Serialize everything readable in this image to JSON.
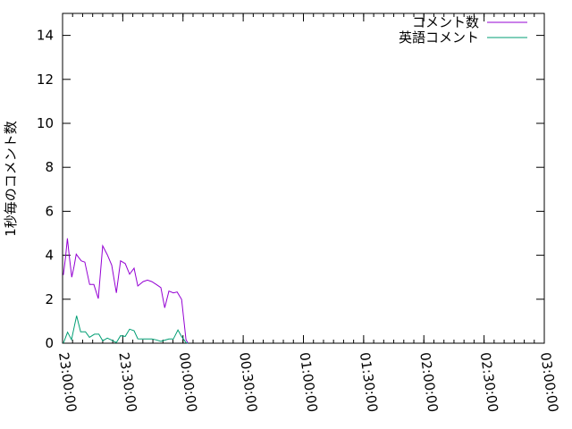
{
  "chart_data": {
    "type": "line",
    "title": "",
    "xlabel": "",
    "ylabel": "1秒毎のコメント数",
    "xlim": [
      "23:00:00",
      "03:00:00"
    ],
    "ylim": [
      0,
      15
    ],
    "xticks": [
      "23:00:00",
      "23:30:00",
      "00:00:00",
      "00:30:00",
      "01:00:00",
      "01:30:00",
      "02:00:00",
      "02:30:00",
      "03:00:00"
    ],
    "yticks": [
      "0",
      "2",
      "4",
      "6",
      "8",
      "10",
      "12",
      "14"
    ],
    "grid": false,
    "legend": "top-right",
    "series": [
      {
        "name": "コメント数",
        "color": "#9400d3",
        "x": [
          "23:00:24",
          "23:01:30",
          "23:02:24",
          "23:03:24",
          "23:04:36",
          "23:05:42",
          "23:06:48",
          "23:08:06",
          "23:09:18",
          "23:11:06",
          "23:13:30",
          "23:15:36",
          "23:17:48",
          "23:20:00",
          "23:22:18",
          "23:24:30",
          "23:26:48",
          "23:28:54",
          "23:31:12",
          "23:33:24",
          "23:35:36",
          "23:37:30",
          "23:40:06",
          "23:42:18",
          "23:44:30",
          "23:46:42",
          "23:49:00",
          "23:50:54",
          "23:53:00",
          "23:55:12",
          "23:57:06",
          "23:59:18",
          "00:01:30",
          "00:02:30"
        ],
        "y": [
          3.1,
          3.93,
          4.77,
          3.93,
          3.0,
          3.48,
          4.05,
          3.89,
          3.75,
          3.69,
          2.67,
          2.67,
          2.03,
          4.43,
          4.02,
          3.55,
          2.29,
          3.75,
          3.62,
          3.14,
          3.41,
          2.6,
          2.8,
          2.87,
          2.8,
          2.67,
          2.53,
          1.61,
          2.37,
          2.29,
          2.33,
          1.99,
          0.16,
          0
        ]
      },
      {
        "name": "英語コメント",
        "color": "#009e73",
        "x": [
          "23:00:24",
          "23:02:30",
          "23:04:27",
          "23:07:00",
          "23:09:00",
          "23:11:24",
          "23:13:24",
          "23:15:54",
          "23:18:06",
          "23:20:00",
          "23:22:18",
          "23:24:30",
          "23:26:48",
          "23:28:54",
          "23:31:12",
          "23:33:24",
          "23:35:36",
          "23:37:30",
          "23:40:06",
          "23:42:18",
          "23:44:30",
          "23:46:42",
          "23:49:00",
          "23:50:54",
          "23:53:00",
          "23:55:12",
          "23:57:30",
          "23:59:18",
          "00:01:30",
          "00:02:24"
        ],
        "y": [
          0,
          0.5,
          0.16,
          1.25,
          0.52,
          0.52,
          0.27,
          0.41,
          0.41,
          0.11,
          0.23,
          0.14,
          0.03,
          0.34,
          0.31,
          0.64,
          0.57,
          0.2,
          0.19,
          0.19,
          0.19,
          0.15,
          0.08,
          0.14,
          0.19,
          0.19,
          0.6,
          0.3,
          0.03,
          0
        ]
      }
    ]
  }
}
